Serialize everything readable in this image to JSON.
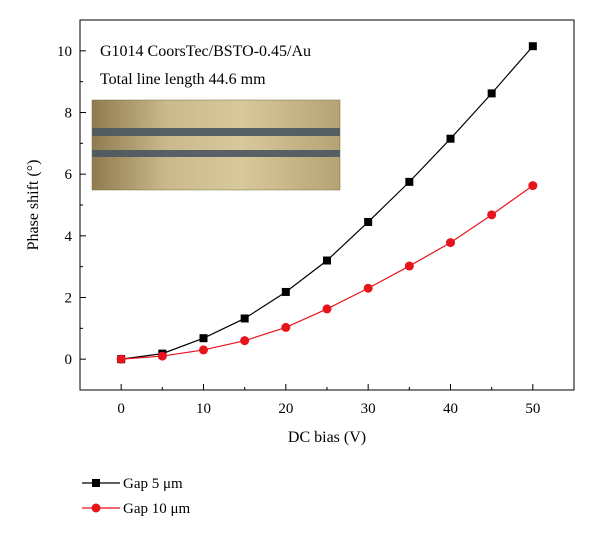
{
  "chart_data": {
    "type": "line",
    "xlabel": "DC bias (V)",
    "ylabel": "Phase shift (°)",
    "xlim": [
      -5,
      55
    ],
    "ylim": [
      -1,
      11
    ],
    "xticks": [
      0,
      10,
      20,
      30,
      40,
      50
    ],
    "yticks": [
      0,
      2,
      4,
      6,
      8,
      10
    ],
    "annotations": [
      "G1014 CoorsTec/BSTO-0.45/Au",
      "Total line length 44.6 mm"
    ],
    "inset_image": "microscope photo of coplanar line with two dark gap stripes",
    "grid": false,
    "legend_position": "bottom-left, below plot",
    "x": [
      0,
      5,
      10,
      15,
      20,
      25,
      30,
      35,
      40,
      45,
      50
    ],
    "series": [
      {
        "name": "Gap 5 μm",
        "marker": "square",
        "color": "#000000",
        "values": [
          0,
          0.18,
          0.68,
          1.32,
          2.18,
          3.2,
          4.45,
          5.75,
          7.15,
          8.62,
          10.15
        ]
      },
      {
        "name": "Gap 10 μm",
        "marker": "circle",
        "color": "#e8141c",
        "values": [
          0,
          0.1,
          0.3,
          0.6,
          1.03,
          1.63,
          2.3,
          3.02,
          3.78,
          4.68,
          5.63
        ]
      }
    ]
  }
}
